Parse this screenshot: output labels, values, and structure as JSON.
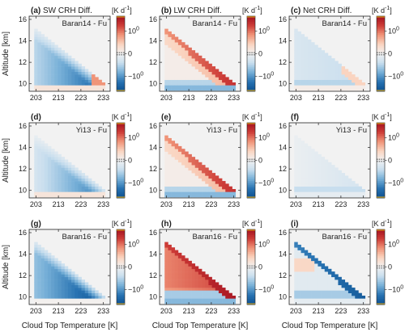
{
  "chart_data": {
    "type": "heatmap",
    "xlabel": "Cloud Top Temperature [K]",
    "ylabel": "Altitude [km]",
    "x_ticks": [
      203,
      213,
      223,
      233
    ],
    "y_ticks": [
      10,
      12,
      14,
      16
    ],
    "xlim": [
      200,
      236
    ],
    "ylim": [
      9.3,
      16.3
    ],
    "colorbar": {
      "unit": "[K d$^{-1}$]",
      "ticks": [
        "10$^0$",
        "0",
        "−10$^0$"
      ],
      "scale": "symlog",
      "colors": {
        "negative": "#0b4f8f",
        "zero": "#f2f2f2",
        "positive": "#a3101f"
      }
    },
    "columns": [
      "SW CRH Diff.",
      "LW CRH Diff.",
      "Net CRH Diff."
    ],
    "rows": [
      "Baran14 - Fu",
      "Yi13 - Fu",
      "Baran16 - Fu"
    ],
    "panels": [
      {
        "letter": "(a)",
        "title": "SW CRH Diff.",
        "label": "Baran14 - Fu",
        "variable": "SW",
        "model": "Baran14"
      },
      {
        "letter": "(b)",
        "title": "LW CRH Diff.",
        "label": "Baran14 - Fu",
        "variable": "LW",
        "model": "Baran14"
      },
      {
        "letter": "(c)",
        "title": "Net CRH Diff.",
        "label": "Baran14 - Fu",
        "variable": "Net",
        "model": "Baran14"
      },
      {
        "letter": "(d)",
        "title": "",
        "label": "Yi13 - Fu",
        "variable": "SW",
        "model": "Yi13"
      },
      {
        "letter": "(e)",
        "title": "",
        "label": "Yi13 - Fu",
        "variable": "LW",
        "model": "Yi13"
      },
      {
        "letter": "(f)",
        "title": "",
        "label": "Yi13 - Fu",
        "variable": "Net",
        "model": "Yi13"
      },
      {
        "letter": "(g)",
        "title": "",
        "label": "Baran16 - Fu",
        "variable": "SW",
        "model": "Baran16"
      },
      {
        "letter": "(h)",
        "title": "",
        "label": "Baran16 - Fu",
        "variable": "LW",
        "model": "Baran16"
      },
      {
        "letter": "(i)",
        "title": "",
        "label": "Baran16 - Fu",
        "variable": "Net",
        "model": "Baran16"
      }
    ]
  }
}
